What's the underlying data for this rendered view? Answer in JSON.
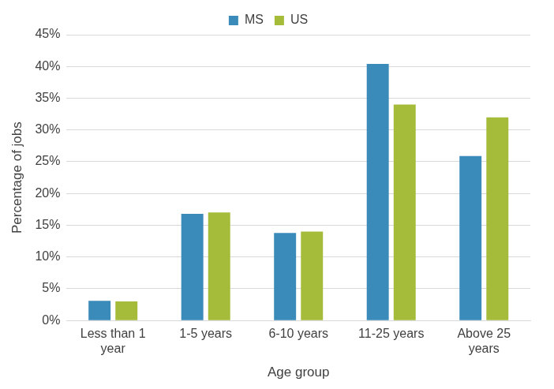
{
  "chart_data": {
    "type": "bar",
    "x_label": "Age group",
    "y_label": "Percentage of jobs",
    "categories": [
      "Less than 1 year",
      "1-5 years",
      "6-10 years",
      "11-25 years",
      "Above 25 years"
    ],
    "series": [
      {
        "name": "MS",
        "color": "#3b8bba",
        "values": [
          3.1,
          16.8,
          13.8,
          40.4,
          25.9
        ]
      },
      {
        "name": "US",
        "color": "#a5bc3b",
        "values": [
          3.0,
          17.0,
          14.0,
          34.0,
          32.0
        ]
      }
    ],
    "ylim": [
      0,
      45
    ],
    "yticks": [
      {
        "value": 0,
        "label": "0%"
      },
      {
        "value": 5,
        "label": "5%"
      },
      {
        "value": 10,
        "label": "10%"
      },
      {
        "value": 15,
        "label": "15%"
      },
      {
        "value": 20,
        "label": "20%"
      },
      {
        "value": 25,
        "label": "25%"
      },
      {
        "value": 30,
        "label": "30%"
      },
      {
        "value": 35,
        "label": "35%"
      },
      {
        "value": 40,
        "label": "40%"
      },
      {
        "value": 45,
        "label": "45%"
      }
    ],
    "grid": true,
    "legend": "top"
  }
}
